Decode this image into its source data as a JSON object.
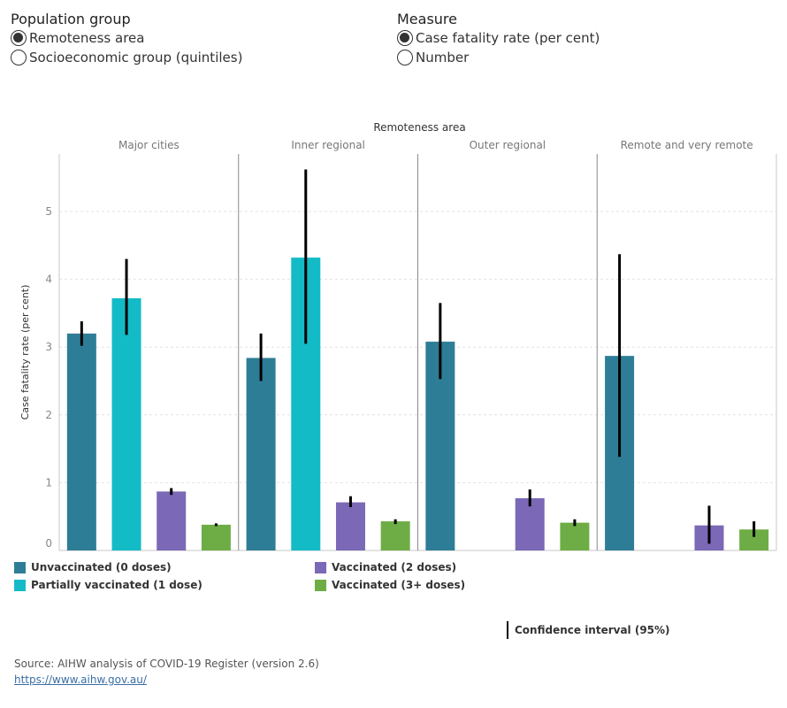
{
  "filters": {
    "population_group": {
      "title": "Population group",
      "options": [
        "Remoteness area",
        "Socioeconomic group (quintiles)"
      ],
      "selected": 0
    },
    "measure": {
      "title": "Measure",
      "options": [
        "Case fatality rate (per cent)",
        "Number"
      ],
      "selected": 0
    }
  },
  "chart_data": {
    "type": "bar",
    "title": "Remoteness area",
    "ylabel": "Case fatality rate (per cent)",
    "ylim": [
      0,
      5.8
    ],
    "yticks": [
      0,
      1,
      2,
      3,
      4,
      5
    ],
    "grid": "horizontal dashed",
    "panels": [
      "Major cities",
      "Inner regional",
      "Outer regional",
      "Remote and very remote"
    ],
    "series": [
      {
        "name": "Unvaccinated (0 doses)",
        "color": "#2e7d96",
        "values": [
          3.2,
          2.84,
          3.08,
          2.87
        ],
        "ci_low": [
          3.02,
          2.5,
          2.53,
          1.38
        ],
        "ci_high": [
          3.38,
          3.2,
          3.65,
          4.37
        ]
      },
      {
        "name": "Partially vaccinated (1 dose)",
        "color": "#13bbc7",
        "values": [
          3.72,
          4.32,
          null,
          null
        ],
        "ci_low": [
          3.18,
          3.05,
          null,
          null
        ],
        "ci_high": [
          4.3,
          5.62,
          null,
          null
        ]
      },
      {
        "name": "Vaccinated (2 doses)",
        "color": "#7b68b6",
        "values": [
          0.87,
          0.71,
          0.77,
          0.37
        ],
        "ci_low": [
          0.82,
          0.64,
          0.65,
          0.1
        ],
        "ci_high": [
          0.92,
          0.8,
          0.9,
          0.66
        ]
      },
      {
        "name": "Vaccinated (3+ doses)",
        "color": "#6ead45",
        "values": [
          0.38,
          0.43,
          0.41,
          0.31
        ],
        "ci_low": [
          0.36,
          0.39,
          0.36,
          0.2
        ],
        "ci_high": [
          0.4,
          0.46,
          0.46,
          0.43
        ]
      }
    ]
  },
  "legend": {
    "ci_label": "Confidence interval (95%)"
  },
  "footer": {
    "source": "Source: AIHW analysis of COVID-19 Register (version 2.6)",
    "link": "https://www.aihw.gov.au/"
  }
}
